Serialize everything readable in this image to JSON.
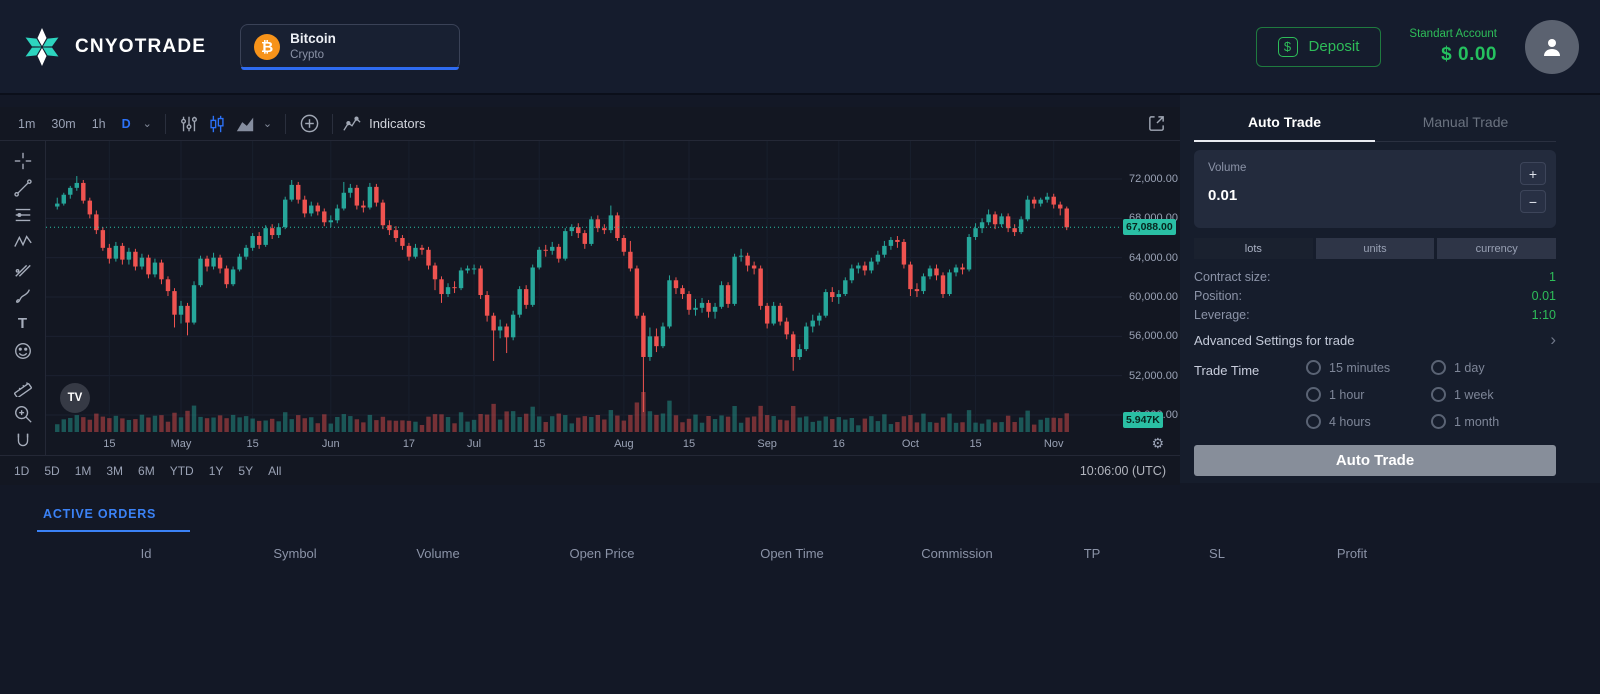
{
  "header": {
    "brand": "CNYOTRADE",
    "instrument": {
      "name": "Bitcoin",
      "category": "Crypto",
      "coin_glyph": "₿"
    },
    "deposit_label": "Deposit",
    "account_type": "Standart Account",
    "balance": "$ 0.00"
  },
  "icons": {
    "plus": "+",
    "minus": "−",
    "chevron_down": "⌄",
    "chevron_right": "›",
    "gear": "⚙",
    "dollar": "$"
  },
  "chart": {
    "toolbar": {
      "timeframes": [
        "1m",
        "30m",
        "1h",
        "D"
      ],
      "active_timeframe": "D",
      "indicators_label": "Indicators"
    },
    "ranges": [
      "1D",
      "5D",
      "1M",
      "3M",
      "6M",
      "YTD",
      "1Y",
      "5Y",
      "All"
    ],
    "clock": "10:06:00 (UTC)",
    "price_tag": "67,088.00",
    "volume_tag": "5.947K",
    "watermark": "TV"
  },
  "chart_data": {
    "type": "candlestick",
    "symbol": "Bitcoin",
    "interval": "D",
    "last_price": 67088,
    "up_color": "#26a69a",
    "down_color": "#ef5350",
    "y_ticks": [
      [
        72000,
        "72,000.00"
      ],
      [
        68000,
        "68,000.00"
      ],
      [
        64000,
        "64,000.00"
      ],
      [
        60000,
        "60,000.00"
      ],
      [
        56000,
        "56,000.00"
      ],
      [
        52000,
        "52,000.00"
      ],
      [
        48000,
        "48,000.00"
      ]
    ],
    "x_ticks": [
      {
        "i": 8,
        "label": "15"
      },
      {
        "i": 19,
        "label": "May"
      },
      {
        "i": 30,
        "label": "15"
      },
      {
        "i": 42,
        "label": "Jun"
      },
      {
        "i": 54,
        "label": "17"
      },
      {
        "i": 64,
        "label": "Jul"
      },
      {
        "i": 74,
        "label": "15"
      },
      {
        "i": 87,
        "label": "Aug"
      },
      {
        "i": 97,
        "label": "15"
      },
      {
        "i": 109,
        "label": "Sep"
      },
      {
        "i": 120,
        "label": "16"
      },
      {
        "i": 131,
        "label": "Oct"
      },
      {
        "i": 141,
        "label": "15"
      },
      {
        "i": 153,
        "label": "Nov"
      }
    ],
    "candles": [
      [
        69200,
        70100,
        68900,
        69500
      ],
      [
        69500,
        70600,
        69300,
        70400
      ],
      [
        70400,
        71300,
        70000,
        71100
      ],
      [
        71100,
        72300,
        70800,
        71600
      ],
      [
        71600,
        71900,
        69500,
        69800
      ],
      [
        69800,
        70100,
        68000,
        68400
      ],
      [
        68400,
        68800,
        66400,
        66800
      ],
      [
        66800,
        67100,
        64700,
        65000
      ],
      [
        65000,
        65400,
        63400,
        63900
      ],
      [
        63900,
        65600,
        63600,
        65200
      ],
      [
        65200,
        65500,
        63300,
        63800
      ],
      [
        63800,
        65000,
        63300,
        64600
      ],
      [
        64600,
        64900,
        62700,
        63100
      ],
      [
        63100,
        64400,
        62800,
        64000
      ],
      [
        64000,
        64300,
        61900,
        62300
      ],
      [
        62300,
        63900,
        62000,
        63500
      ],
      [
        63500,
        63800,
        61300,
        61800
      ],
      [
        61800,
        62100,
        60100,
        60600
      ],
      [
        60600,
        60900,
        56900,
        58200
      ],
      [
        58200,
        59600,
        57300,
        59100
      ],
      [
        59100,
        59400,
        56100,
        57400
      ],
      [
        57400,
        61600,
        57200,
        61200
      ],
      [
        61200,
        64200,
        61000,
        63900
      ],
      [
        63900,
        64200,
        62600,
        63100
      ],
      [
        63100,
        64500,
        62800,
        64000
      ],
      [
        64000,
        64300,
        62400,
        62900
      ],
      [
        62900,
        63200,
        60900,
        61300
      ],
      [
        61300,
        63100,
        61100,
        62800
      ],
      [
        62800,
        64400,
        62600,
        64100
      ],
      [
        64100,
        65300,
        63800,
        65000
      ],
      [
        65000,
        66500,
        64700,
        66200
      ],
      [
        66200,
        66600,
        64900,
        65300
      ],
      [
        65300,
        67300,
        65100,
        67000
      ],
      [
        67000,
        67400,
        65900,
        66300
      ],
      [
        66300,
        67500,
        66000,
        67100
      ],
      [
        67100,
        70200,
        66900,
        69900
      ],
      [
        69900,
        71900,
        69700,
        71400
      ],
      [
        71400,
        71700,
        69500,
        69900
      ],
      [
        69900,
        70300,
        68100,
        68500
      ],
      [
        68500,
        69700,
        68200,
        69300
      ],
      [
        69300,
        69600,
        68300,
        68700
      ],
      [
        68700,
        69000,
        67200,
        67600
      ],
      [
        67600,
        68300,
        67100,
        67800
      ],
      [
        67800,
        69400,
        67500,
        69000
      ],
      [
        69000,
        71700,
        68800,
        70600
      ],
      [
        70600,
        71500,
        70100,
        71100
      ],
      [
        71100,
        71400,
        68900,
        69300
      ],
      [
        69300,
        69800,
        68600,
        69100
      ],
      [
        69100,
        71600,
        68900,
        71200
      ],
      [
        71200,
        71500,
        69200,
        69600
      ],
      [
        69600,
        69900,
        66900,
        67300
      ],
      [
        67300,
        67800,
        66300,
        66800
      ],
      [
        66800,
        67200,
        65600,
        66000
      ],
      [
        66000,
        66300,
        64800,
        65200
      ],
      [
        65200,
        65500,
        63700,
        64100
      ],
      [
        64100,
        65400,
        63900,
        65000
      ],
      [
        65000,
        65300,
        64300,
        64800
      ],
      [
        64800,
        65100,
        62800,
        63200
      ],
      [
        63200,
        63500,
        60700,
        61800
      ],
      [
        61800,
        62100,
        59400,
        60300
      ],
      [
        60300,
        61400,
        60000,
        61000
      ],
      [
        61000,
        61600,
        60400,
        60900
      ],
      [
        60900,
        63000,
        60700,
        62700
      ],
      [
        62700,
        63200,
        62400,
        62900
      ],
      [
        62900,
        63300,
        62300,
        62900
      ],
      [
        62900,
        63200,
        59800,
        60200
      ],
      [
        60200,
        60600,
        57500,
        58100
      ],
      [
        58100,
        58400,
        53500,
        56600
      ],
      [
        56600,
        57700,
        55800,
        57000
      ],
      [
        57000,
        57300,
        54300,
        55900
      ],
      [
        55900,
        58600,
        55600,
        58200
      ],
      [
        58200,
        61100,
        57900,
        60800
      ],
      [
        60800,
        61200,
        58800,
        59200
      ],
      [
        59200,
        63300,
        59000,
        63000
      ],
      [
        63000,
        65100,
        62800,
        64800
      ],
      [
        64800,
        65300,
        64100,
        64700
      ],
      [
        64700,
        65600,
        64300,
        65100
      ],
      [
        65100,
        65400,
        63500,
        63900
      ],
      [
        63900,
        67000,
        63700,
        66700
      ],
      [
        66700,
        67400,
        66200,
        67100
      ],
      [
        67100,
        67500,
        66000,
        66500
      ],
      [
        66500,
        66800,
        64900,
        65400
      ],
      [
        65400,
        68200,
        65200,
        67900
      ],
      [
        67900,
        68300,
        66600,
        67000
      ],
      [
        67000,
        67400,
        66400,
        66800
      ],
      [
        66800,
        69300,
        66500,
        68300
      ],
      [
        68300,
        68600,
        65700,
        66000
      ],
      [
        66000,
        66300,
        64200,
        64600
      ],
      [
        64600,
        65700,
        62600,
        62900
      ],
      [
        62900,
        63200,
        57800,
        58100
      ],
      [
        58100,
        58400,
        48300,
        53900
      ],
      [
        53900,
        56900,
        53500,
        56000
      ],
      [
        56000,
        56800,
        54400,
        55000
      ],
      [
        55000,
        57400,
        54800,
        57000
      ],
      [
        57000,
        62200,
        56800,
        61700
      ],
      [
        61700,
        62000,
        60300,
        60900
      ],
      [
        60900,
        61200,
        59800,
        60300
      ],
      [
        60300,
        60600,
        58200,
        58700
      ],
      [
        58700,
        59800,
        58100,
        58900
      ],
      [
        58900,
        59900,
        58400,
        59400
      ],
      [
        59400,
        59700,
        57900,
        58500
      ],
      [
        58500,
        59400,
        57800,
        59000
      ],
      [
        59000,
        61600,
        58800,
        61200
      ],
      [
        61200,
        61500,
        58900,
        59300
      ],
      [
        59300,
        64400,
        59100,
        64100
      ],
      [
        64100,
        64900,
        63600,
        64200
      ],
      [
        64200,
        64500,
        62600,
        63200
      ],
      [
        63200,
        63600,
        62300,
        62900
      ],
      [
        62900,
        63200,
        58700,
        59100
      ],
      [
        59100,
        59400,
        56800,
        57300
      ],
      [
        57300,
        59500,
        57100,
        59100
      ],
      [
        59100,
        59400,
        57100,
        57500
      ],
      [
        57500,
        57900,
        55700,
        56200
      ],
      [
        56200,
        56500,
        52500,
        53900
      ],
      [
        53900,
        55200,
        53600,
        54700
      ],
      [
        54700,
        57400,
        54500,
        57000
      ],
      [
        57000,
        58200,
        56400,
        57600
      ],
      [
        57600,
        58400,
        57100,
        58100
      ],
      [
        58100,
        60800,
        57900,
        60500
      ],
      [
        60500,
        61000,
        59500,
        60000
      ],
      [
        60000,
        60700,
        59300,
        60300
      ],
      [
        60300,
        62000,
        60100,
        61700
      ],
      [
        61700,
        63300,
        61400,
        62900
      ],
      [
        62900,
        63500,
        62400,
        63200
      ],
      [
        63200,
        63600,
        62200,
        62700
      ],
      [
        62700,
        64000,
        62400,
        63600
      ],
      [
        63600,
        64700,
        63300,
        64300
      ],
      [
        64300,
        65700,
        64000,
        65200
      ],
      [
        65200,
        66100,
        64800,
        65800
      ],
      [
        65800,
        66200,
        65000,
        65600
      ],
      [
        65600,
        65900,
        62900,
        63300
      ],
      [
        63300,
        63600,
        60100,
        60800
      ],
      [
        60800,
        61400,
        60000,
        60600
      ],
      [
        60600,
        62400,
        60300,
        62100
      ],
      [
        62100,
        63200,
        61800,
        62900
      ],
      [
        62900,
        63300,
        61700,
        62200
      ],
      [
        62200,
        62500,
        59900,
        60300
      ],
      [
        60300,
        62800,
        60100,
        62500
      ],
      [
        62500,
        63300,
        62100,
        63000
      ],
      [
        63000,
        63400,
        62300,
        62800
      ],
      [
        62800,
        66400,
        62600,
        66100
      ],
      [
        66100,
        67500,
        65800,
        67000
      ],
      [
        67000,
        68000,
        66500,
        67600
      ],
      [
        67600,
        68900,
        67300,
        68400
      ],
      [
        68400,
        68700,
        66900,
        67400
      ],
      [
        67400,
        68500,
        67100,
        68200
      ],
      [
        68200,
        68500,
        66600,
        67000
      ],
      [
        67000,
        67400,
        66200,
        66600
      ],
      [
        66600,
        68200,
        66400,
        67900
      ],
      [
        67900,
        70300,
        67700,
        69900
      ],
      [
        69900,
        70200,
        69000,
        69500
      ],
      [
        69500,
        70100,
        69200,
        69900
      ],
      [
        69900,
        70600,
        69600,
        70200
      ],
      [
        70200,
        70500,
        69000,
        69400
      ],
      [
        69400,
        69700,
        68300,
        69000
      ],
      [
        69000,
        69200,
        66800,
        67088
      ]
    ]
  },
  "trade_panel": {
    "tabs": [
      {
        "label": "Auto Trade",
        "active": true
      },
      {
        "label": "Manual Trade",
        "active": false
      }
    ],
    "volume": {
      "label": "Volume",
      "value": "0.01"
    },
    "unit_buttons": [
      "lots",
      "units",
      "currency"
    ],
    "active_unit": "lots",
    "info_rows": [
      {
        "label": "Contract size:",
        "value": "1"
      },
      {
        "label": "Position:",
        "value": "0.01"
      },
      {
        "label": "Leverage:",
        "value": "1:10"
      }
    ],
    "advanced_label": "Advanced Settings for trade",
    "trade_time_label": "Trade Time",
    "trade_time_options": [
      "15 minutes",
      "1 hour",
      "4 hours",
      "1 day",
      "1 week",
      "1 month"
    ],
    "submit_label": "Auto Trade"
  },
  "orders": {
    "tab_label": "ACTIVE ORDERS",
    "columns": [
      "Id",
      "Symbol",
      "Volume",
      "Open Price",
      "Open Time",
      "Commission",
      "TP",
      "SL",
      "Profit"
    ]
  }
}
